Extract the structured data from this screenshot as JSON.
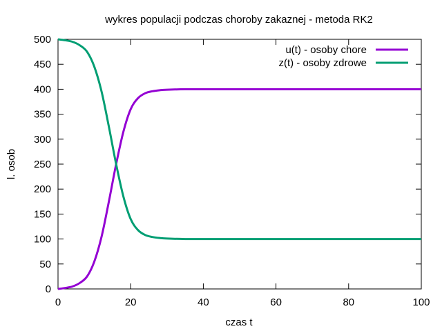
{
  "chart_data": {
    "type": "line",
    "title": "wykres  populacji podczas choroby zakaznej - metoda RK2",
    "xlabel": "czas t",
    "ylabel": "l. osob",
    "xlim": [
      0,
      100
    ],
    "ylim": [
      0,
      500
    ],
    "xticks": [
      0,
      20,
      40,
      60,
      80,
      100
    ],
    "yticks": [
      0,
      50,
      100,
      150,
      200,
      250,
      300,
      350,
      400,
      450,
      500
    ],
    "grid": false,
    "legend_position": "top-right",
    "series": [
      {
        "name": "u(t) - osoby chore",
        "color": "#9400d3",
        "x": [
          0,
          2,
          4,
          6,
          8,
          10,
          12,
          14,
          16,
          18,
          20,
          22,
          24,
          26,
          28,
          30,
          35,
          40,
          60,
          80,
          100
        ],
        "y": [
          0,
          2,
          5,
          12,
          25,
          55,
          105,
          175,
          250,
          315,
          360,
          382,
          392,
          396,
          398,
          399,
          400,
          400,
          400,
          400,
          400
        ]
      },
      {
        "name": "z(t) - osoby zdrowe",
        "color": "#009e73",
        "x": [
          0,
          2,
          4,
          6,
          8,
          10,
          12,
          14,
          16,
          18,
          20,
          22,
          24,
          26,
          28,
          30,
          35,
          40,
          60,
          80,
          100
        ],
        "y": [
          500,
          498,
          495,
          488,
          475,
          445,
          395,
          325,
          250,
          185,
          140,
          118,
          108,
          104,
          102,
          101,
          100,
          100,
          100,
          100,
          100
        ]
      }
    ]
  }
}
